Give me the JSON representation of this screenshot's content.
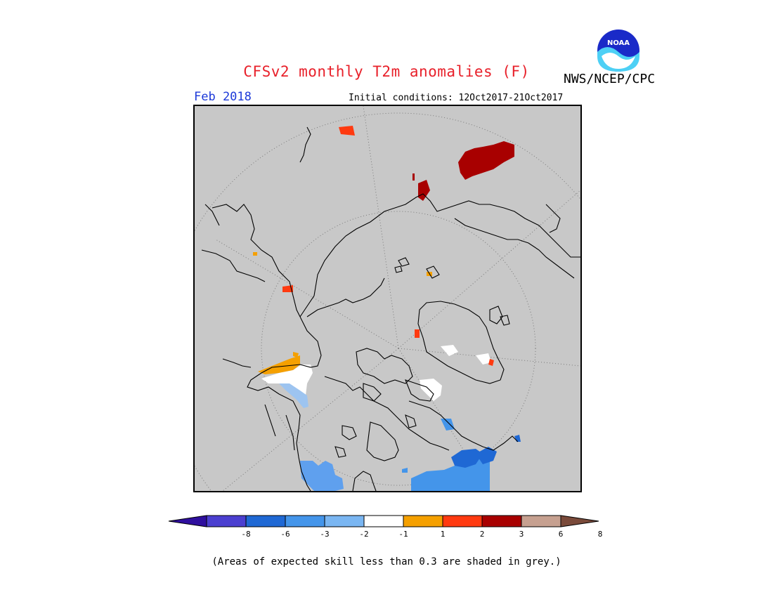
{
  "header": {
    "title": "CFSv2 monthly T2m anomalies (F)",
    "agency": "NWS/NCEP/CPC",
    "month": "Feb 2018",
    "initial_conditions": "Initial conditions: 12Oct2017-21Oct2017"
  },
  "logo": {
    "text": "NOAA",
    "icon": "noaa-logo"
  },
  "map": {
    "projection": "north-polar-stereographic",
    "background_color": "#c8c8c8",
    "graticule": "dotted",
    "anomaly_regions": [
      {
        "region": "Western Alaska",
        "category": "1 to 2",
        "color": "#f5a000"
      },
      {
        "region": "Alaska interior",
        "category": "-1 to 1",
        "color": "#ffffff"
      },
      {
        "region": "Southern Alaska / Yukon",
        "category": "-2 to -1",
        "color": "#9dc4f0"
      },
      {
        "region": "Pacific Northwest",
        "category": "-3 to -2",
        "color": "#5fa0ee"
      },
      {
        "region": "Northern US plains / Great Lakes",
        "category": "-3 to -2",
        "color": "#4495ea"
      },
      {
        "region": "Ontario / Quebec",
        "category": "-6 to -3",
        "color": "#1f68d4"
      },
      {
        "region": "Central Russia",
        "category": "3 to 6",
        "color": "#a80000"
      },
      {
        "region": "Kazakhstan",
        "category": "2 to 3",
        "color": "#ff3a10"
      },
      {
        "region": "Greenland",
        "category": "-1 to 1",
        "color": "#ffffff"
      },
      {
        "region": "Canadian Archipelago",
        "category": "-1 to 1",
        "color": "#ffffff"
      }
    ]
  },
  "colorbar": {
    "colors": [
      "#2f0f9e",
      "#4b3fd0",
      "#1f68d4",
      "#4495ea",
      "#7ab6f2",
      "#ffffff",
      "#f5a000",
      "#ff3a10",
      "#a80000",
      "#c6a090",
      "#7a4a3a"
    ],
    "ticks": [
      "-8",
      "-6",
      "-3",
      "-2",
      "-1",
      "1",
      "2",
      "3",
      "6",
      "8"
    ]
  },
  "footnote": "(Areas of expected skill less than 0.3 are shaded in grey.)"
}
